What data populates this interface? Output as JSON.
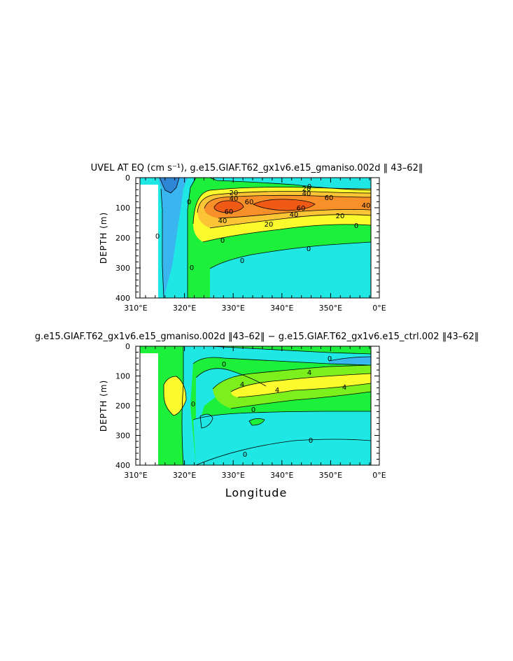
{
  "chart_data": [
    {
      "type": "heatmap",
      "title": "UVEL AT EQ (cm s⁻¹), g.e15.GIAF.T62_gx1v6.e15_gmaniso.002d ‖ 43–62‖",
      "xlabel": "",
      "ylabel": "DEPTH (m)",
      "xlim": [
        310,
        360
      ],
      "ylim": [
        400,
        0
      ],
      "x_ticks": [
        "310°E",
        "320°E",
        "330°E",
        "340°E",
        "350°E",
        "0°E"
      ],
      "y_ticks": [
        "0",
        "100",
        "200",
        "300",
        "400"
      ],
      "contour_labels": [
        "0",
        "0",
        "0",
        "0",
        "0",
        "0",
        "0",
        "20",
        "40",
        "60",
        "60",
        "40",
        "60",
        "40",
        "20",
        "40",
        "20",
        "40",
        "20",
        "60",
        "0"
      ],
      "levels": [
        -40,
        -20,
        0,
        20,
        40,
        60,
        80
      ]
    },
    {
      "type": "heatmap",
      "title": "g.e15.GIAF.T62_gx1v6.e15_gmaniso.002d ‖43–62‖ − g.e15.GIAF.T62_gx1v6.e15_ctrl.002 ‖43–62‖",
      "xlabel": "Longitude",
      "ylabel": "DEPTH (m)",
      "xlim": [
        310,
        360
      ],
      "ylim": [
        400,
        0
      ],
      "x_ticks": [
        "310°E",
        "320°E",
        "330°E",
        "340°E",
        "350°E",
        "0°E"
      ],
      "y_ticks": [
        "0",
        "100",
        "200",
        "300",
        "400"
      ],
      "contour_labels": [
        "0",
        "0",
        "4",
        "4",
        "4",
        "4",
        "0",
        "0",
        "0",
        "0"
      ],
      "levels": [
        -8,
        -4,
        0,
        4,
        8
      ]
    }
  ],
  "colors": {
    "dark_blue": "#2f86d6",
    "mid_blue": "#39b6f0",
    "cyan": "#1fe8e4",
    "green": "#1df03a",
    "light_green": "#7cf01c",
    "yellow": "#fafa2d",
    "light_orange": "#fcc535",
    "orange": "#f79029",
    "red_orange": "#ef5a14",
    "missing": "#ffffff"
  }
}
